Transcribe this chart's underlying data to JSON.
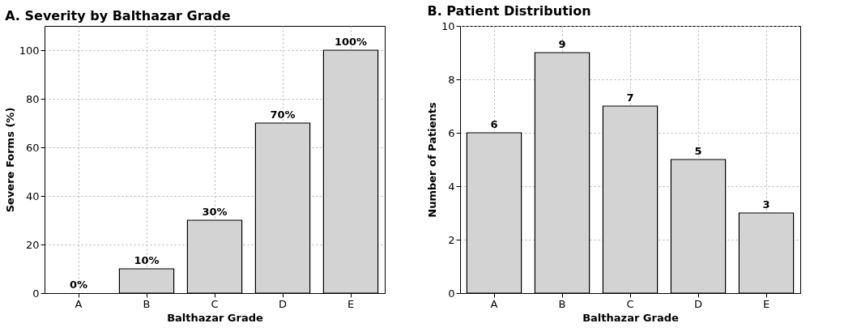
{
  "chart_data": [
    {
      "type": "bar",
      "title": "A. Severity by Balthazar Grade",
      "xlabel": "Balthazar Grade",
      "ylabel": "Severe Forms (%)",
      "categories": [
        "A",
        "B",
        "C",
        "D",
        "E"
      ],
      "values": [
        0,
        10,
        30,
        70,
        100
      ],
      "value_labels": [
        "0%",
        "10%",
        "30%",
        "70%",
        "100%"
      ],
      "color": "#d3d3d3",
      "ylim": [
        0,
        110
      ],
      "yticks": [
        0,
        20,
        40,
        60,
        80,
        100
      ],
      "grid": true
    },
    {
      "type": "bar",
      "title": "B. Patient Distribution",
      "xlabel": "Balthazar Grade",
      "ylabel": "Number of Patients",
      "categories": [
        "A",
        "B",
        "C",
        "D",
        "E"
      ],
      "values": [
        6,
        9,
        7,
        5,
        3
      ],
      "data_labels": true,
      "color": "#d3d3d3",
      "ylim": [
        0,
        10
      ],
      "yticks": [
        0,
        2,
        4,
        6,
        8,
        10
      ],
      "grid": true
    }
  ]
}
